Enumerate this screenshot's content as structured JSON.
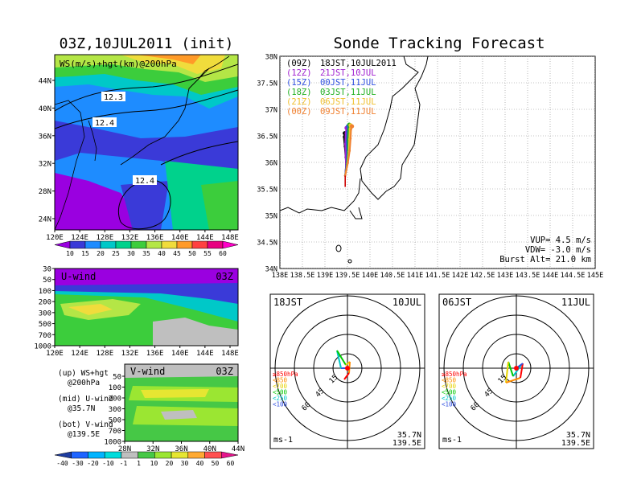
{
  "main_title": "Sonde Tracking Forecast",
  "left_title": "03Z,10JUL2011 (init)",
  "map_panel": {
    "label": "WS(m/s)+hgt(km)@200hPa",
    "y_ticks": [
      "44N",
      "40N",
      "36N",
      "32N",
      "28N",
      "24N"
    ],
    "x_ticks": [
      "120E",
      "124E",
      "128E",
      "132E",
      "136E",
      "140E",
      "144E",
      "148E"
    ],
    "contour_labels": [
      "12.3",
      "12.4",
      "12.4"
    ],
    "colorbar_ticks": [
      "10",
      "15",
      "20",
      "25",
      "30",
      "35",
      "40",
      "45",
      "50",
      "55",
      "60"
    ],
    "colorbar_colors": [
      "#9a00e0",
      "#3a3ad8",
      "#1e8cff",
      "#00c8c8",
      "#00d28c",
      "#3ccd3c",
      "#b4e646",
      "#f0dc3c",
      "#ff9a28",
      "#ff4040",
      "#e80080",
      "#ff00c8"
    ]
  },
  "u_panel": {
    "label": "U-wind",
    "time": "03Z",
    "y_ticks": [
      "30",
      "50",
      "100",
      "200",
      "300",
      "500",
      "700",
      "1000"
    ],
    "x_ticks": [
      "120E",
      "124E",
      "128E",
      "132E",
      "136E",
      "140E",
      "144E",
      "148E"
    ]
  },
  "v_panel": {
    "label": "V-wind",
    "time": "03Z",
    "y_ticks": [
      "50",
      "100",
      "200",
      "300",
      "500",
      "700",
      "1000"
    ],
    "x_ticks": [
      "28N",
      "32N",
      "36N",
      "40N",
      "44N"
    ]
  },
  "legend_notes": [
    [
      "(up) WS+hgt",
      "@200hPa"
    ],
    [
      "(mid) U-wind",
      "@35.7N"
    ],
    [
      "(bot) V-wind",
      "@139.5E"
    ]
  ],
  "bottom_colorbar": {
    "ticks": [
      "-40",
      "-30",
      "-20",
      "-10",
      "-1",
      "1",
      "10",
      "20",
      "30",
      "40",
      "50",
      "60"
    ],
    "colors": [
      "#1e3ca0",
      "#1e64ff",
      "#00b4ff",
      "#00dcdc",
      "#bfbfbf",
      "#46c846",
      "#9be632",
      "#e6e632",
      "#ffaa32",
      "#ff5050",
      "#e6148c"
    ]
  },
  "track_panel": {
    "y_ticks": [
      "38N",
      "37.5N",
      "37N",
      "36.5N",
      "36N",
      "35.5N",
      "35N",
      "34.5N",
      "34N"
    ],
    "x_ticks": [
      "138E",
      "138.5E",
      "139E",
      "139.5E",
      "140E",
      "140.5E",
      "141E",
      "141.5E",
      "142E",
      "142.5E",
      "143E",
      "143.5E",
      "144E",
      "144.5E",
      "145E"
    ],
    "legend": [
      {
        "z": "(09Z)",
        "jst": "18JST,10JUL2011",
        "color": "#000000"
      },
      {
        "z": "(12Z)",
        "jst": "21JST,10JUL",
        "color": "#a020d0"
      },
      {
        "z": "(15Z)",
        "jst": "00JST,11JUL",
        "color": "#3050e0"
      },
      {
        "z": "(18Z)",
        "jst": "03JST,11JUL",
        "color": "#20b020"
      },
      {
        "z": "(21Z)",
        "jst": "06JST,11JUL",
        "color": "#f0c030"
      },
      {
        "z": "(00Z)",
        "jst": "09JST,11JUL",
        "color": "#f08030"
      }
    ],
    "vup": "VUP= 4.5 m/s",
    "vdw": "VDW= -3.0 m/s",
    "burst": "Burst Alt= 21.0 km"
  },
  "hodographs": [
    {
      "left": "18JST",
      "right": "10JUL",
      "lat": "35.7N",
      "lon": "139.5E",
      "unit": "ms-1"
    },
    {
      "left": "06JST",
      "right": "11JUL",
      "lat": "35.7N",
      "lon": "139.5E",
      "unit": "ms-1"
    }
  ],
  "hodo_ring_labels": [
    "15",
    "45",
    "60"
  ],
  "hodo_levels": [
    {
      "label": "≥850hPa",
      "color": "#ff0000"
    },
    {
      "label": "<850",
      "color": "#ff8c00"
    },
    {
      "label": "<700",
      "color": "#e6d200"
    },
    {
      "label": "<500",
      "color": "#00c800"
    },
    {
      "label": "<250",
      "color": "#00c8c8"
    },
    {
      "label": "<100",
      "color": "#3050e0"
    }
  ],
  "chart_data": {
    "type": "line",
    "title": "Sonde Tracking Forecast",
    "x_range": [
      138,
      145
    ],
    "y_range": [
      34,
      38
    ],
    "series": [
      {
        "name": "(09Z) 18JST,10JUL2011",
        "x": [
          139.45,
          139.47,
          139.46,
          139.44,
          139.42,
          139.44
        ],
        "y": [
          35.75,
          35.95,
          36.1,
          36.3,
          36.48,
          36.55
        ]
      },
      {
        "name": "(12Z) 21JST,10JUL",
        "x": [
          139.45,
          139.47,
          139.46,
          139.45,
          139.46,
          139.48
        ],
        "y": [
          35.75,
          35.95,
          36.12,
          36.35,
          36.55,
          36.65
        ]
      },
      {
        "name": "(15Z) 00JST,11JUL",
        "x": [
          139.45,
          139.48,
          139.49,
          139.48,
          139.49,
          139.51
        ],
        "y": [
          35.75,
          35.96,
          36.15,
          36.38,
          36.58,
          36.68
        ]
      },
      {
        "name": "(18Z) 03JST,11JUL",
        "x": [
          139.45,
          139.49,
          139.51,
          139.51,
          139.52,
          139.54
        ],
        "y": [
          35.75,
          35.97,
          36.18,
          36.42,
          36.62,
          36.71
        ]
      },
      {
        "name": "(21Z) 06JST,11JUL",
        "x": [
          139.45,
          139.5,
          139.53,
          139.54,
          139.55,
          139.57
        ],
        "y": [
          35.75,
          35.98,
          36.2,
          36.44,
          36.63,
          36.7
        ]
      },
      {
        "name": "(00Z) 09JST,11JUL",
        "x": [
          139.45,
          139.51,
          139.55,
          139.57,
          139.58,
          139.6
        ],
        "y": [
          35.75,
          35.99,
          36.22,
          36.45,
          36.62,
          36.68
        ]
      }
    ],
    "grid": true,
    "legend_position": "top-left"
  }
}
